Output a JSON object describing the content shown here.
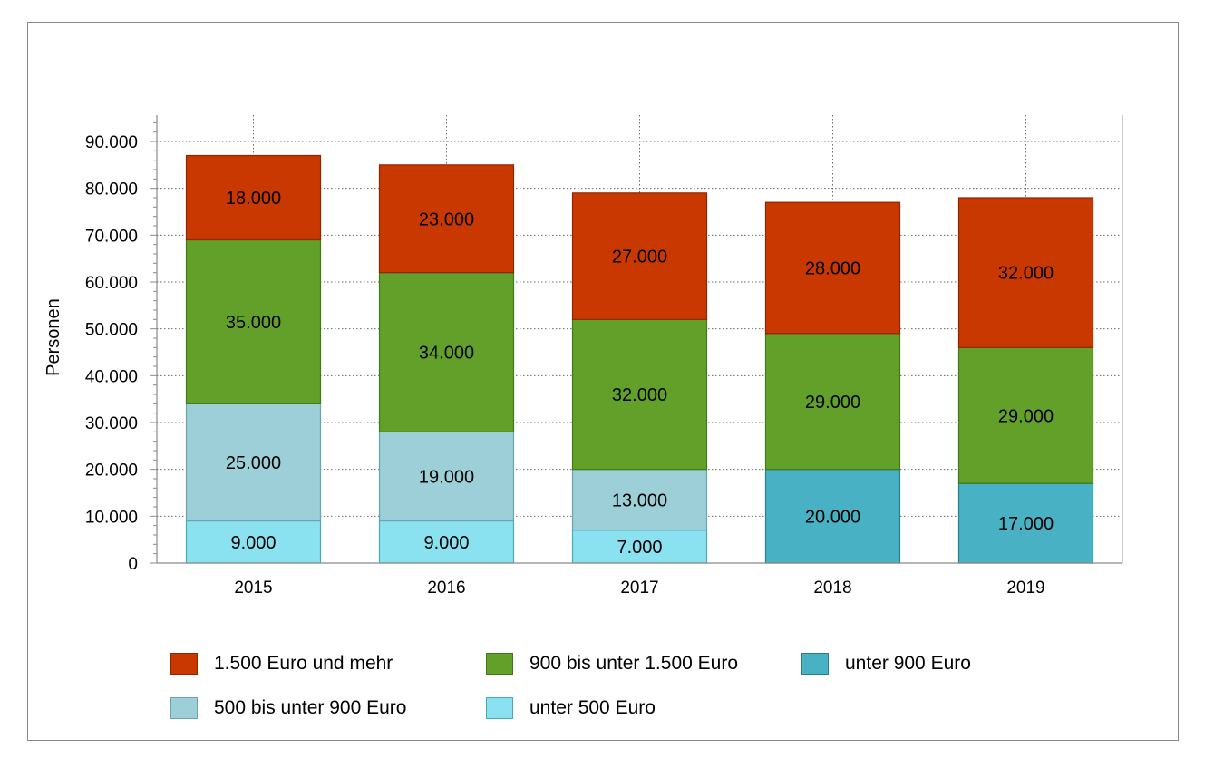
{
  "chart_data": {
    "type": "bar",
    "stacked": true,
    "categories": [
      "2015",
      "2016",
      "2017",
      "2018",
      "2019"
    ],
    "ylabel": "Personen",
    "xlabel": "",
    "title": "",
    "ylim": [
      0,
      95000
    ],
    "yticks": [
      0,
      10000,
      20000,
      30000,
      40000,
      50000,
      60000,
      70000,
      80000,
      90000
    ],
    "ytick_labels": [
      "0",
      "10.000",
      "20.000",
      "30.000",
      "40.000",
      "50.000",
      "60.000",
      "70.000",
      "80.000",
      "90.000"
    ],
    "grid": true,
    "legend_position": "bottom",
    "series": [
      {
        "name": "unter 500 Euro",
        "color": "#8ae1ef",
        "border": "#4aa9b8",
        "values": [
          9000,
          9000,
          7000,
          null,
          null
        ],
        "labels": [
          "9.000",
          "9.000",
          "7.000",
          "",
          ""
        ]
      },
      {
        "name": "unter 900 Euro",
        "color": "#48b1c3",
        "border": "#2a7f8c",
        "values": [
          null,
          null,
          null,
          20000,
          17000
        ],
        "labels": [
          "",
          "",
          "",
          "20.000",
          "17.000"
        ]
      },
      {
        "name": "500 bis unter 900 Euro",
        "color": "#9ccfd7",
        "border": "#6aa4ad",
        "values": [
          25000,
          19000,
          13000,
          null,
          null
        ],
        "labels": [
          "25.000",
          "19.000",
          "13.000",
          "",
          ""
        ]
      },
      {
        "name": "900 bis unter 1.500 Euro",
        "color": "#62a02a",
        "border": "#3f7a14",
        "values": [
          35000,
          34000,
          32000,
          29000,
          29000
        ],
        "labels": [
          "35.000",
          "34.000",
          "32.000",
          "29.000",
          "29.000"
        ]
      },
      {
        "name": "1.500 Euro und mehr",
        "color": "#c83800",
        "border": "#8f2600",
        "values": [
          18000,
          23000,
          27000,
          28000,
          32000
        ],
        "labels": [
          "18.000",
          "23.000",
          "27.000",
          "28.000",
          "32.000"
        ]
      }
    ],
    "legend_order": [
      "1.500 Euro und mehr",
      "900 bis unter 1.500 Euro",
      "unter 900 Euro",
      "500 bis unter 900 Euro",
      "unter 500 Euro"
    ]
  }
}
